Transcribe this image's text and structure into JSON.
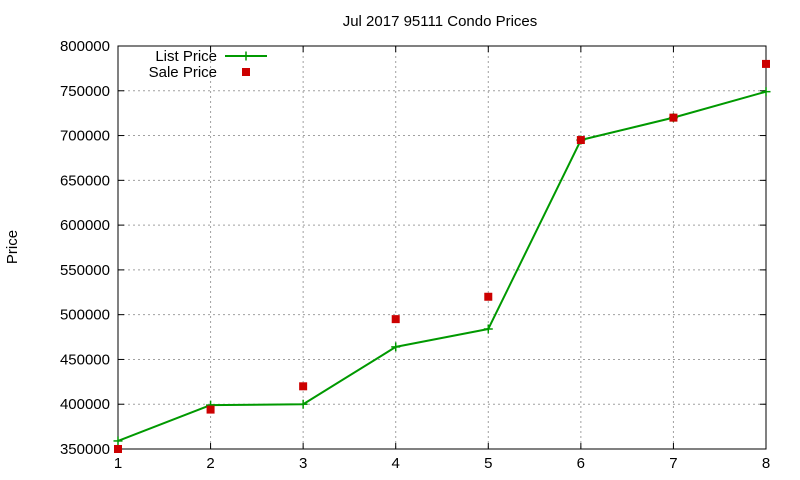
{
  "chart_data": {
    "type": "line",
    "title": "Jul 2017 95111 Condo Prices",
    "xlabel": "",
    "ylabel": "Price",
    "x": [
      1,
      2,
      3,
      4,
      5,
      6,
      7,
      8
    ],
    "xlim": [
      1,
      8
    ],
    "ylim": [
      350000,
      800000
    ],
    "xticks": [
      1,
      2,
      3,
      4,
      5,
      6,
      7,
      8
    ],
    "yticks": [
      350000,
      400000,
      450000,
      500000,
      550000,
      600000,
      650000,
      700000,
      750000,
      800000
    ],
    "grid": true,
    "legend_position": "top-left",
    "series": [
      {
        "name": "List Price",
        "style": "line-points",
        "marker": "plus",
        "color": "#009900",
        "values": [
          359000,
          399000,
          400000,
          464000,
          484000,
          695000,
          720000,
          749000
        ]
      },
      {
        "name": "Sale Price",
        "style": "points",
        "marker": "square",
        "color": "#cc0000",
        "values": [
          350000,
          394000,
          420000,
          495000,
          520000,
          695000,
          720000,
          780000
        ]
      }
    ]
  }
}
